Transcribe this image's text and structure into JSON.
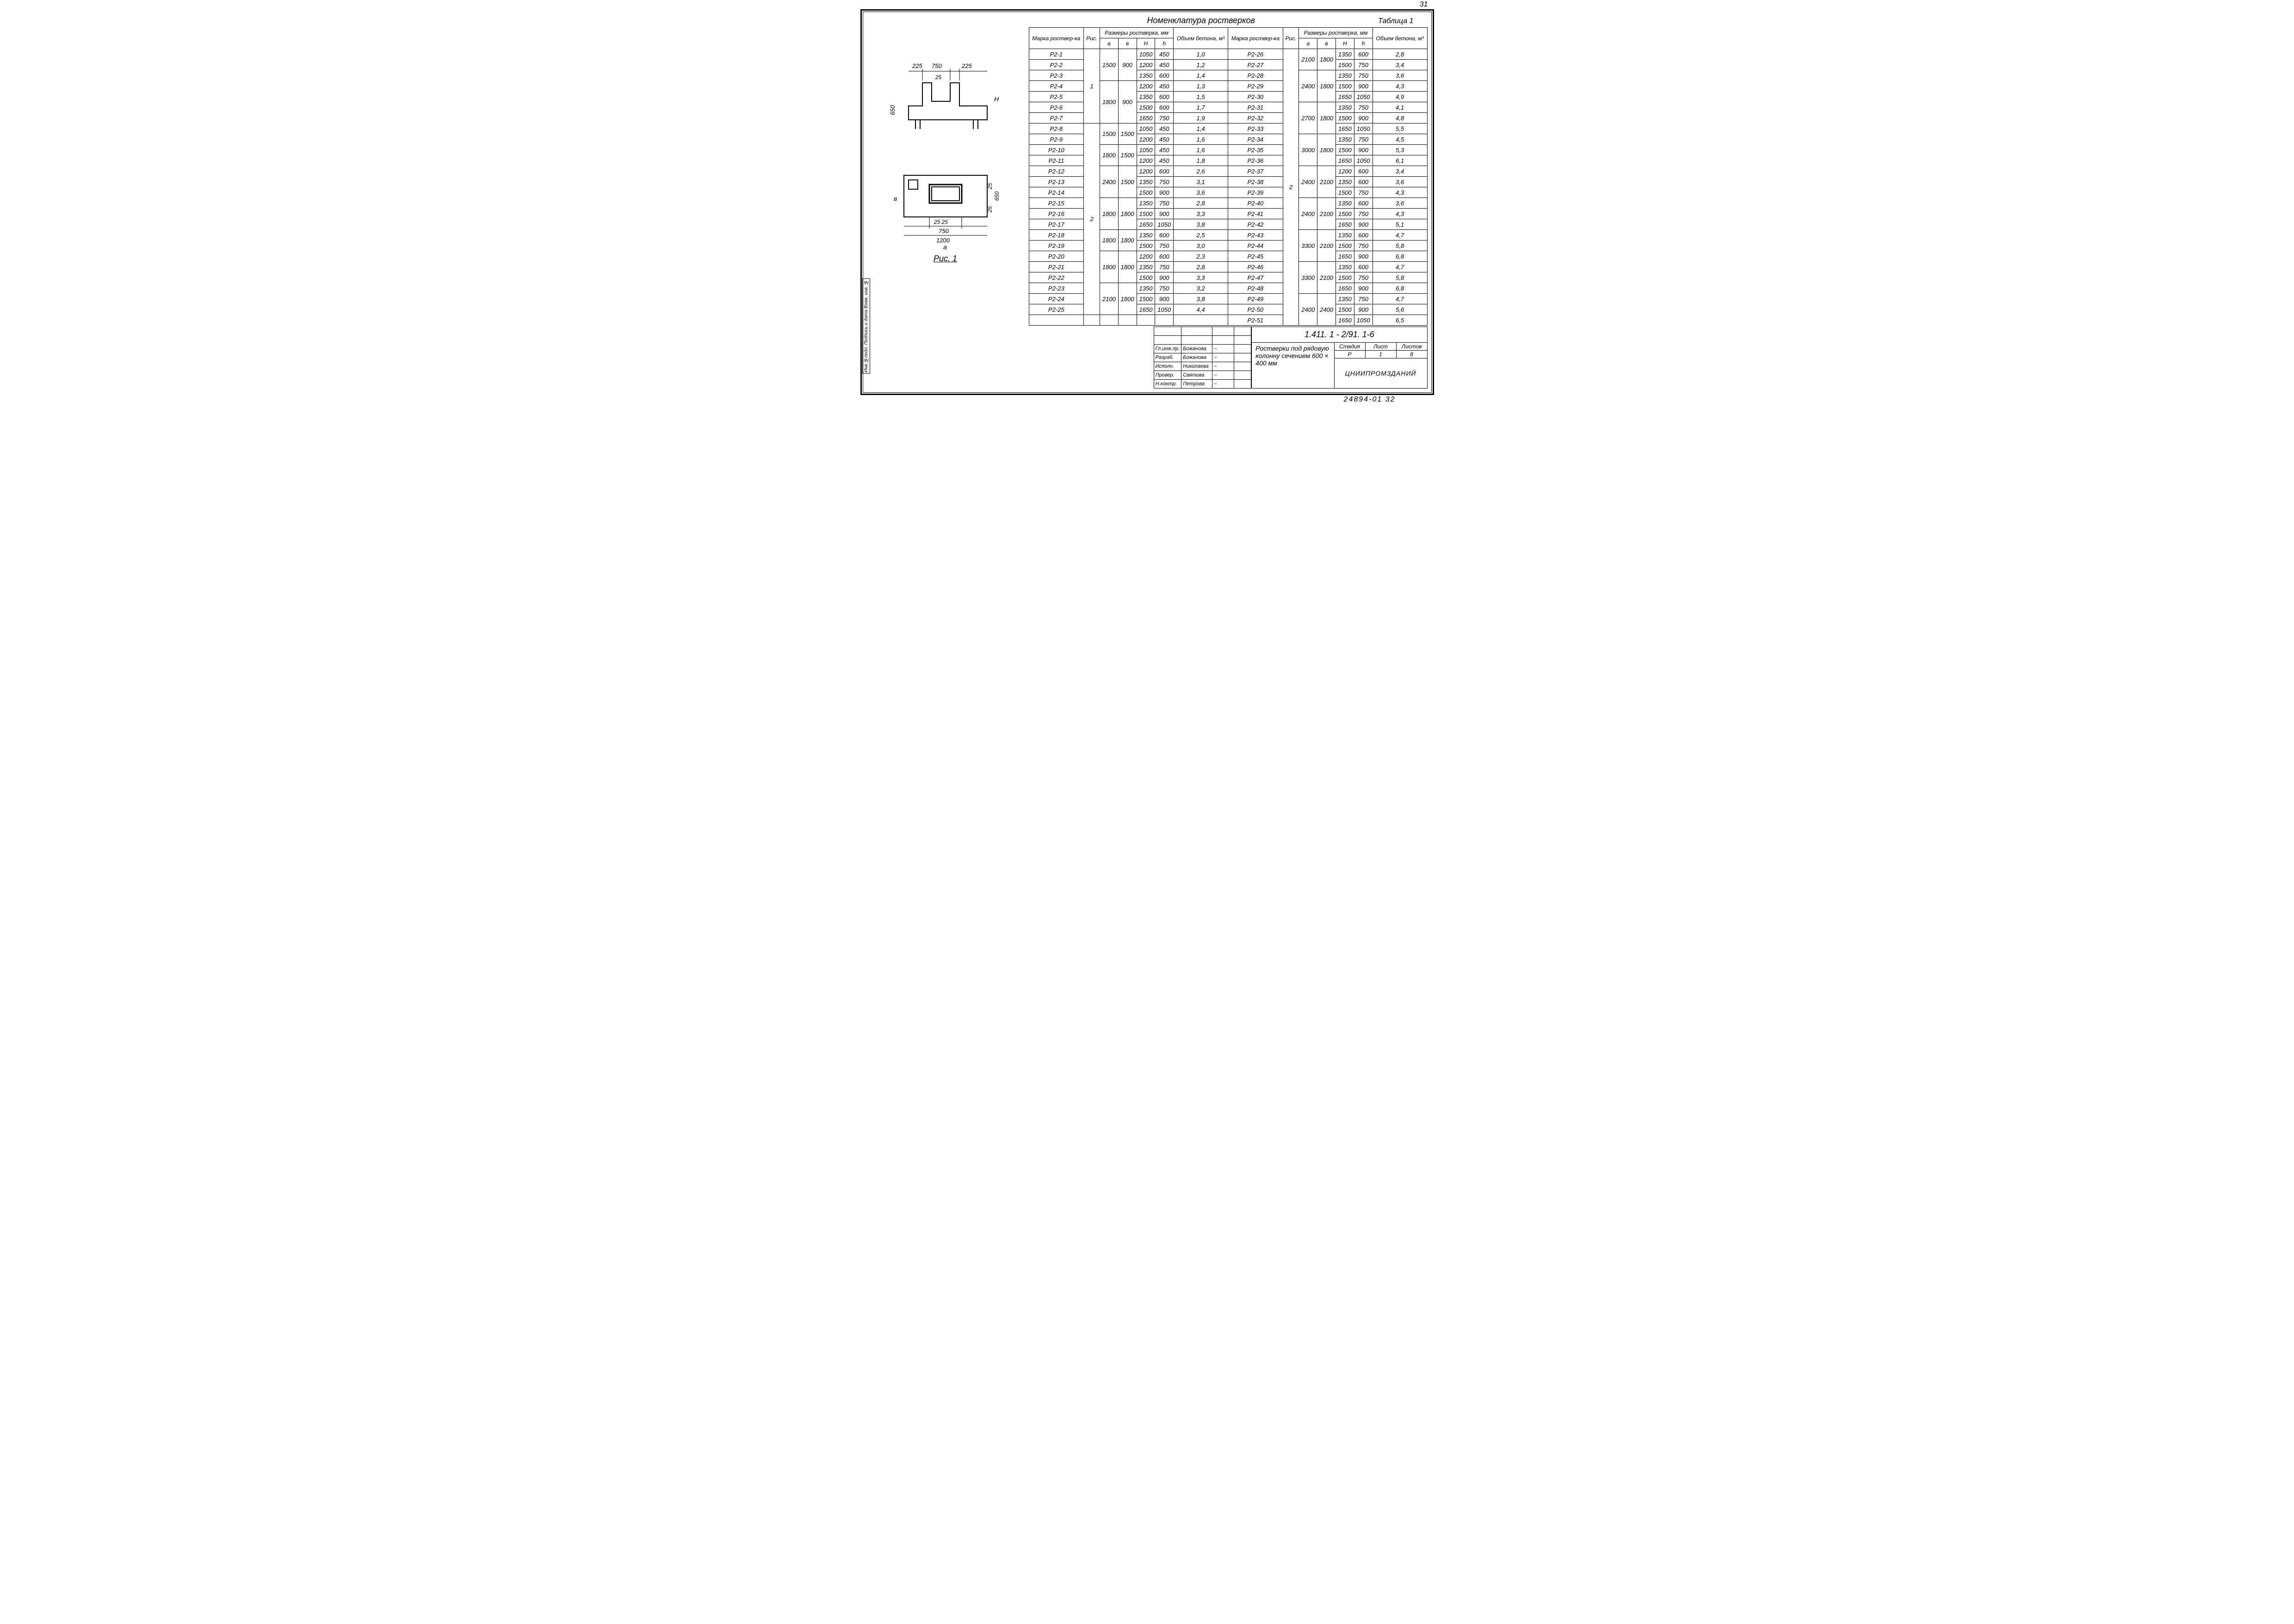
{
  "page_number_top": "31",
  "page_number_bottom": "24894-01   32",
  "main_title": "Номенклатура ростверков",
  "table_label": "Таблица 1",
  "side_stamp": "Инв.№подл. Подпись и дата Взам. инв. №",
  "headers": {
    "marka": "Марка роствер-ка",
    "ris": "Рис.",
    "razmery": "Размеры ростверка, мм",
    "a": "a",
    "b": "в",
    "H_big": "H",
    "h_small": "h",
    "volume": "Объем бетона, м³"
  },
  "figure": {
    "caption": "Рис. 1",
    "dims": {
      "d225a": "225",
      "d750": "750",
      "d225b": "225",
      "d25": "25",
      "d650": "650",
      "H": "H",
      "h": "h",
      "a_lbl": "a",
      "b_lbl": "в",
      "d2525": "25 25",
      "d750b": "750",
      "d1200": "1200"
    }
  },
  "rows_left": [
    {
      "m": "Р2-1",
      "r": "1",
      "a": "1500",
      "b": "900",
      "H": "1050",
      "h": "450",
      "v": "1,0"
    },
    {
      "m": "Р2-2",
      "r": "",
      "a": "",
      "b": "",
      "H": "1200",
      "h": "450",
      "v": "1,2"
    },
    {
      "m": "Р2-3",
      "r": "",
      "a": "",
      "b": "",
      "H": "1350",
      "h": "600",
      "v": "1,4"
    },
    {
      "m": "Р2-4",
      "r": "",
      "a": "1800",
      "b": "900",
      "H": "1200",
      "h": "450",
      "v": "1,3"
    },
    {
      "m": "Р2-5",
      "r": "",
      "a": "",
      "b": "",
      "H": "1350",
      "h": "600",
      "v": "1,5"
    },
    {
      "m": "Р2-6",
      "r": "",
      "a": "",
      "b": "",
      "H": "1500",
      "h": "600",
      "v": "1,7"
    },
    {
      "m": "Р2-7",
      "r": "",
      "a": "",
      "b": "",
      "H": "1650",
      "h": "750",
      "v": "1,9"
    },
    {
      "m": "Р2-8",
      "r": "2",
      "a": "1500",
      "b": "1500",
      "H": "1050",
      "h": "450",
      "v": "1,4"
    },
    {
      "m": "Р2-9",
      "r": "",
      "a": "",
      "b": "",
      "H": "1200",
      "h": "450",
      "v": "1,6"
    },
    {
      "m": "Р2-10",
      "r": "",
      "a": "1800",
      "b": "1500",
      "H": "1050",
      "h": "450",
      "v": "1,6"
    },
    {
      "m": "Р2-11",
      "r": "",
      "a": "",
      "b": "",
      "H": "1200",
      "h": "450",
      "v": "1,8"
    },
    {
      "m": "Р2-12",
      "r": "",
      "a": "2400",
      "b": "1500",
      "H": "1200",
      "h": "600",
      "v": "2,6"
    },
    {
      "m": "Р2-13",
      "r": "",
      "a": "",
      "b": "",
      "H": "1350",
      "h": "750",
      "v": "3,1"
    },
    {
      "m": "Р2-14",
      "r": "",
      "a": "",
      "b": "",
      "H": "1500",
      "h": "900",
      "v": "3,6"
    },
    {
      "m": "Р2-15",
      "r": "",
      "a": "1800",
      "b": "1800",
      "H": "1350",
      "h": "750",
      "v": "2,8"
    },
    {
      "m": "Р2-16",
      "r": "",
      "a": "",
      "b": "",
      "H": "1500",
      "h": "900",
      "v": "3,3"
    },
    {
      "m": "Р2-17",
      "r": "",
      "a": "",
      "b": "",
      "H": "1650",
      "h": "1050",
      "v": "3,8"
    },
    {
      "m": "Р2-18",
      "r": "",
      "a": "1800",
      "b": "1800",
      "H": "1350",
      "h": "600",
      "v": "2,5"
    },
    {
      "m": "Р2-19",
      "r": "",
      "a": "",
      "b": "",
      "H": "1500",
      "h": "750",
      "v": "3,0"
    },
    {
      "m": "Р2-20",
      "r": "",
      "a": "1800",
      "b": "1800",
      "H": "1200",
      "h": "600",
      "v": "2,3"
    },
    {
      "m": "Р2-21",
      "r": "",
      "a": "",
      "b": "",
      "H": "1350",
      "h": "750",
      "v": "2,8"
    },
    {
      "m": "Р2-22",
      "r": "",
      "a": "",
      "b": "",
      "H": "1500",
      "h": "900",
      "v": "3,3"
    },
    {
      "m": "Р2-23",
      "r": "",
      "a": "2100",
      "b": "1800",
      "H": "1350",
      "h": "750",
      "v": "3,2"
    },
    {
      "m": "Р2-24",
      "r": "",
      "a": "",
      "b": "",
      "H": "1500",
      "h": "900",
      "v": "3,8"
    },
    {
      "m": "Р2-25",
      "r": "",
      "a": "",
      "b": "",
      "H": "1650",
      "h": "1050",
      "v": "4,4"
    }
  ],
  "rows_right": [
    {
      "m": "Р2-26",
      "r": "2",
      "a": "2100",
      "b": "1800",
      "H": "1350",
      "h": "600",
      "v": "2,8"
    },
    {
      "m": "Р2-27",
      "r": "",
      "a": "",
      "b": "",
      "H": "1500",
      "h": "750",
      "v": "3,4"
    },
    {
      "m": "Р2-28",
      "r": "",
      "a": "2400",
      "b": "1800",
      "H": "1350",
      "h": "750",
      "v": "3,6"
    },
    {
      "m": "Р2-29",
      "r": "",
      "a": "",
      "b": "",
      "H": "1500",
      "h": "900",
      "v": "4,3"
    },
    {
      "m": "Р2-30",
      "r": "",
      "a": "",
      "b": "",
      "H": "1650",
      "h": "1050",
      "v": "4,9"
    },
    {
      "m": "Р2-31",
      "r": "",
      "a": "2700",
      "b": "1800",
      "H": "1350",
      "h": "750",
      "v": "4,1"
    },
    {
      "m": "Р2-32",
      "r": "",
      "a": "",
      "b": "",
      "H": "1500",
      "h": "900",
      "v": "4,8"
    },
    {
      "m": "Р2-33",
      "r": "",
      "a": "",
      "b": "",
      "H": "1650",
      "h": "1050",
      "v": "5,5"
    },
    {
      "m": "Р2-34",
      "r": "",
      "a": "3000",
      "b": "1800",
      "H": "1350",
      "h": "750",
      "v": "4,5"
    },
    {
      "m": "Р2-35",
      "r": "",
      "a": "",
      "b": "",
      "H": "1500",
      "h": "900",
      "v": "5,3"
    },
    {
      "m": "Р2-36",
      "r": "",
      "a": "",
      "b": "",
      "H": "1650",
      "h": "1050",
      "v": "6,1"
    },
    {
      "m": "Р2-37",
      "r": "",
      "a": "2400",
      "b": "2100",
      "H": "1200",
      "h": "600",
      "v": "3,4"
    },
    {
      "m": "Р2-38",
      "r": "",
      "a": "",
      "b": "",
      "H": "1350",
      "h": "600",
      "v": "3,6"
    },
    {
      "m": "Р2-39",
      "r": "",
      "a": "",
      "b": "",
      "H": "1500",
      "h": "750",
      "v": "4,3"
    },
    {
      "m": "Р2-40",
      "r": "",
      "a": "2400",
      "b": "2100",
      "H": "1350",
      "h": "600",
      "v": "3,6"
    },
    {
      "m": "Р2-41",
      "r": "",
      "a": "",
      "b": "",
      "H": "1500",
      "h": "750",
      "v": "4,3"
    },
    {
      "m": "Р2-42",
      "r": "",
      "a": "",
      "b": "",
      "H": "1650",
      "h": "900",
      "v": "5,1"
    },
    {
      "m": "Р2-43",
      "r": "",
      "a": "3300",
      "b": "2100",
      "H": "1350",
      "h": "600",
      "v": "4,7"
    },
    {
      "m": "Р2-44",
      "r": "",
      "a": "",
      "b": "",
      "H": "1500",
      "h": "750",
      "v": "5,8"
    },
    {
      "m": "Р2-45",
      "r": "",
      "a": "",
      "b": "",
      "H": "1650",
      "h": "900",
      "v": "6,8"
    },
    {
      "m": "Р2-46",
      "r": "",
      "a": "3300",
      "b": "2100",
      "H": "1350",
      "h": "600",
      "v": "4,7"
    },
    {
      "m": "Р2-47",
      "r": "",
      "a": "",
      "b": "",
      "H": "1500",
      "h": "750",
      "v": "5,8"
    },
    {
      "m": "Р2-48",
      "r": "",
      "a": "",
      "b": "",
      "H": "1650",
      "h": "900",
      "v": "6,8"
    },
    {
      "m": "Р2-49",
      "r": "",
      "a": "2400",
      "b": "2400",
      "H": "1350",
      "h": "750",
      "v": "4,7"
    },
    {
      "m": "Р2-50",
      "r": "",
      "a": "",
      "b": "",
      "H": "1500",
      "h": "900",
      "v": "5,6"
    },
    {
      "m": "Р2-51",
      "r": "",
      "a": "",
      "b": "",
      "H": "1650",
      "h": "1050",
      "v": "6,5"
    }
  ],
  "title_block": {
    "code": "1.411. 1 - 2/91. 1-6",
    "description": "Ростверки под рядовую колонну сечением 600 × 400 мм",
    "roles": [
      {
        "role": "Гл.инж.пр.",
        "name": "Божанова"
      },
      {
        "role": "Разраб.",
        "name": "Божанова"
      },
      {
        "role": "Исполн.",
        "name": "Николаева"
      },
      {
        "role": "Провер.",
        "name": "Святова"
      },
      {
        "role": "Н.контр.",
        "name": "Петрова"
      }
    ],
    "meta_headers": {
      "stage": "Стадия",
      "sheet": "Лист",
      "sheets": "Листов"
    },
    "meta_values": {
      "stage": "Р",
      "sheet": "1",
      "sheets": "8"
    },
    "org": "ЦНИИПРОМЗДАНИЙ"
  }
}
